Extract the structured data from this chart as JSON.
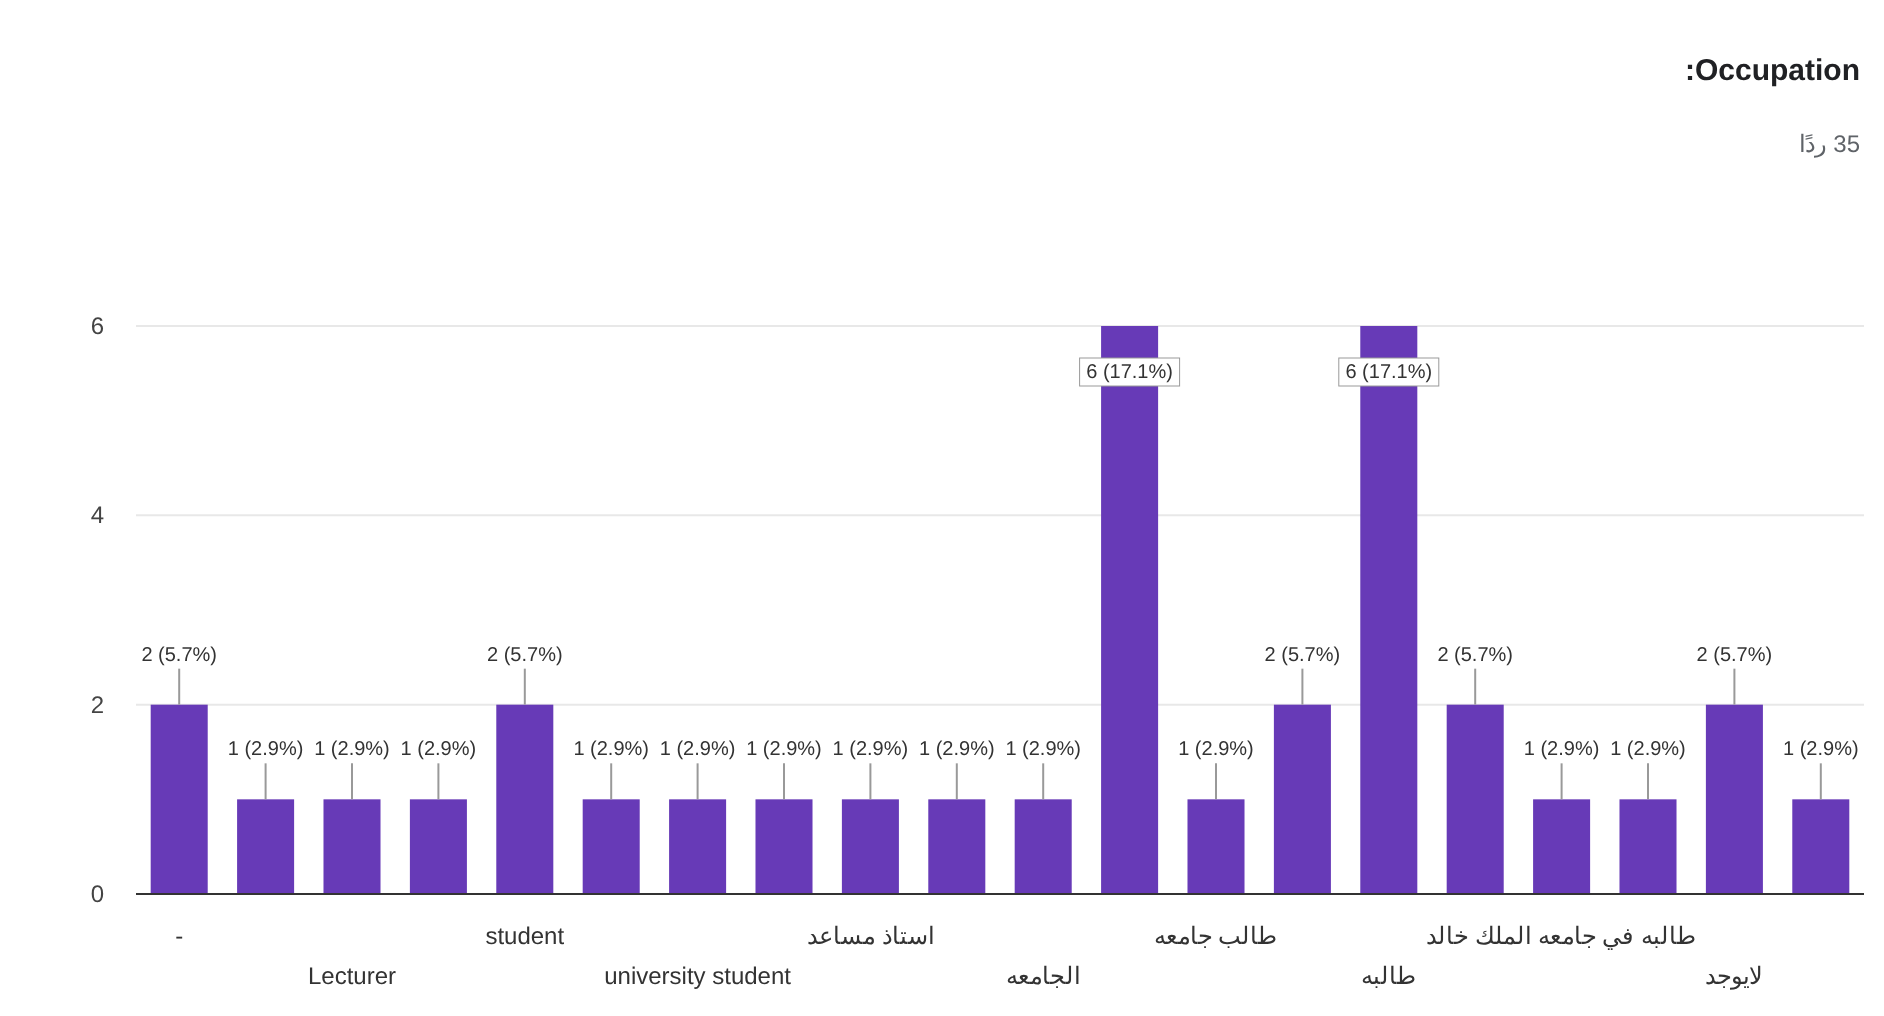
{
  "chart_data": {
    "type": "bar",
    "title": "Occupation:",
    "subtitle": "35 ردًا",
    "categories": [
      "-",
      null,
      "Lecturer",
      null,
      "student",
      null,
      "university student",
      null,
      "استاذ مساعد",
      null,
      "الجامعه",
      null,
      "طالب جامعه",
      null,
      "طالبه",
      null,
      "طالبه في جامعه الملك خالد",
      null,
      "لايوجد",
      null
    ],
    "values": [
      2,
      1,
      1,
      1,
      2,
      1,
      1,
      1,
      1,
      1,
      1,
      6,
      1,
      2,
      6,
      2,
      1,
      1,
      2,
      1
    ],
    "value_labels": [
      "2 (5.7%)",
      "1 (2.9%)",
      "1 (2.9%)",
      "1 (2.9%)",
      "2 (5.7%)",
      "1 (2.9%)",
      "1 (2.9%)",
      "1 (2.9%)",
      "1 (2.9%)",
      "1 (2.9%)",
      "1 (2.9%)",
      "6 (17.1%)",
      "1 (2.9%)",
      "2 (5.7%)",
      "6 (17.1%)",
      "2 (5.7%)",
      "1 (2.9%)",
      "1 (2.9%)",
      "2 (5.7%)",
      "1 (2.9%)"
    ],
    "color": "#673ab7",
    "ylim": [
      0,
      6
    ],
    "yticks": [
      0,
      2,
      4,
      6
    ],
    "grid": "y"
  }
}
